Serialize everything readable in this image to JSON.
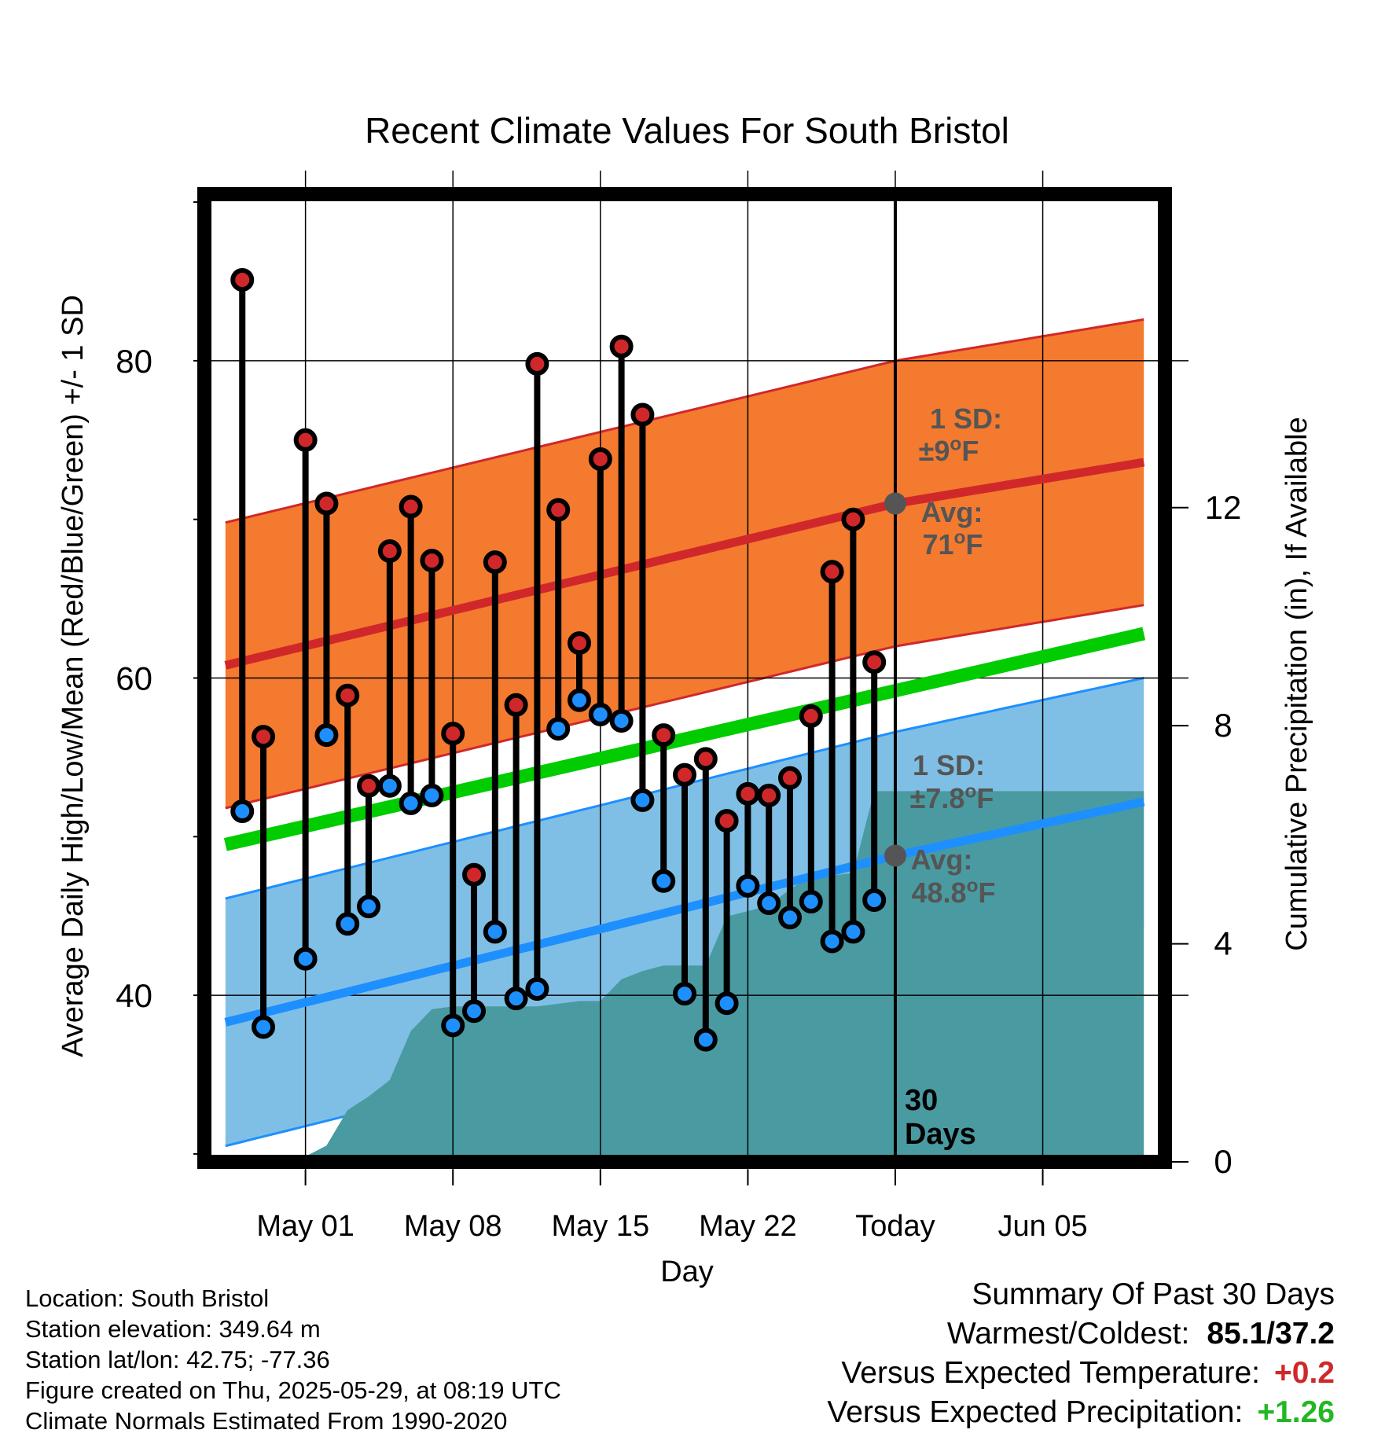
{
  "chart_data": {
    "type": "line",
    "title": "Recent Climate Values For South Bristol",
    "xlabel": "Day",
    "ylabel": "Average Daily High/Low/Mean (Red/Blue/Green) +/- 1 SD",
    "y2label": "Cumulative Precipitation (in), If Available",
    "xlim": [
      -3.8,
      41.8
    ],
    "ylim": [
      29.5,
      90.5
    ],
    "y2lim": [
      0,
      17.75
    ],
    "x_ticks": [
      {
        "x": 1,
        "label": "May 01"
      },
      {
        "x": 8,
        "label": "May 08"
      },
      {
        "x": 15,
        "label": "May 15"
      },
      {
        "x": 22,
        "label": "May 22"
      },
      {
        "x": 29,
        "label": "Today"
      },
      {
        "x": 36,
        "label": "Jun 05"
      }
    ],
    "y_ticks": [
      {
        "y": 40,
        "label": "40"
      },
      {
        "y": 60,
        "label": "60"
      },
      {
        "y": 80,
        "label": "80"
      }
    ],
    "y_minor_ticks": [
      30,
      50,
      70,
      90
    ],
    "y2_ticks": [
      {
        "y": 0,
        "label": "0"
      },
      {
        "y": 4,
        "label": "4"
      },
      {
        "y": 8,
        "label": "8"
      },
      {
        "y": 12,
        "label": "12"
      }
    ],
    "today_x": 29,
    "today_label_line1": "30",
    "today_label_line2": "Days",
    "normal_high": {
      "x": [
        -2.8,
        29,
        40.8
      ],
      "mean": [
        60.8,
        71,
        73.6
      ],
      "sd": 9
    },
    "normal_low": {
      "x": [
        -2.8,
        29,
        40.8
      ],
      "mean": [
        38.3,
        48.8,
        52.2
      ],
      "sd": 7.8
    },
    "normal_mean": {
      "x": [
        -2.8,
        40.8
      ],
      "values": [
        49.5,
        62.8
      ]
    },
    "daily": {
      "x": [
        -2,
        -1,
        1,
        2,
        3,
        4,
        5,
        6,
        7,
        8,
        9,
        10,
        11,
        12,
        13,
        14,
        15,
        16,
        17,
        18,
        19,
        20,
        21,
        22,
        23,
        24,
        25,
        26,
        27,
        28
      ],
      "high": [
        85.1,
        56.3,
        75.0,
        71.0,
        58.9,
        53.2,
        68.0,
        70.8,
        67.4,
        56.5,
        47.6,
        67.3,
        58.3,
        79.8,
        70.6,
        62.2,
        73.8,
        80.9,
        76.6,
        56.4,
        53.9,
        54.9,
        51.0,
        52.7,
        52.6,
        53.7,
        57.6,
        66.7,
        70.0,
        61.0
      ],
      "low": [
        51.6,
        38.0,
        42.3,
        56.4,
        44.5,
        45.6,
        53.2,
        52.1,
        52.6,
        38.1,
        39.0,
        44.0,
        39.8,
        40.4,
        56.8,
        58.6,
        57.7,
        57.3,
        52.3,
        47.2,
        40.1,
        37.2,
        39.5,
        46.9,
        45.8,
        44.9,
        45.9,
        43.4,
        44.0,
        46.0
      ]
    },
    "precip": {
      "x": [
        -3.8,
        1,
        2,
        3,
        4,
        5,
        6,
        7,
        8,
        9,
        10,
        11,
        12,
        13,
        14,
        15,
        16,
        17,
        18,
        19,
        20,
        21,
        22,
        23,
        24,
        25,
        26,
        27,
        28,
        29,
        40.8
      ],
      "cumulative": [
        0,
        0.1,
        0.3,
        0.95,
        1.2,
        1.5,
        2.4,
        2.8,
        2.85,
        2.85,
        2.85,
        2.85,
        2.85,
        2.9,
        2.95,
        2.95,
        3.35,
        3.5,
        3.6,
        3.6,
        3.6,
        4.5,
        4.6,
        4.7,
        5.0,
        5.25,
        5.25,
        5.3,
        6.8,
        6.8,
        6.8
      ]
    },
    "annotations": {
      "high_sd": "1 SD:",
      "high_sd_val": "±9°F",
      "high_avg": "Avg:",
      "high_avg_val": "71°F",
      "low_sd": "1 SD:",
      "low_sd_val": "±7.8°F",
      "low_avg": "Avg:",
      "low_avg_val": "48.8°F"
    },
    "colors": {
      "high_band": "#f47a2f",
      "high_line": "#d0282a",
      "low_band": "#80bfe5",
      "low_line": "#1e8fff",
      "mean_line": "#00cc00",
      "precip": "#4a9aa2",
      "high_marker": "#d0282a",
      "low_marker": "#1e8fff",
      "annotation": "#555555"
    }
  },
  "info": {
    "location": "Location: South Bristol",
    "elevation": "Station elevation: 349.64 m",
    "latlon": "Station lat/lon: 42.75; -77.36",
    "created": "Figure created on Thu, 2025-05-29, at 08:19 UTC",
    "normals": "Climate Normals Estimated From 1990-2020"
  },
  "summary": {
    "heading": "Summary Of Past 30 Days",
    "warmest_label": "Warmest/Coldest:",
    "warmest_value": "85.1/37.2",
    "temp_label": "Versus Expected Temperature:",
    "temp_value": "+0.2",
    "temp_color": "#d0282a",
    "precip_label": "Versus Expected Precipitation:",
    "precip_value": "+1.26",
    "precip_color": "#22b822"
  }
}
